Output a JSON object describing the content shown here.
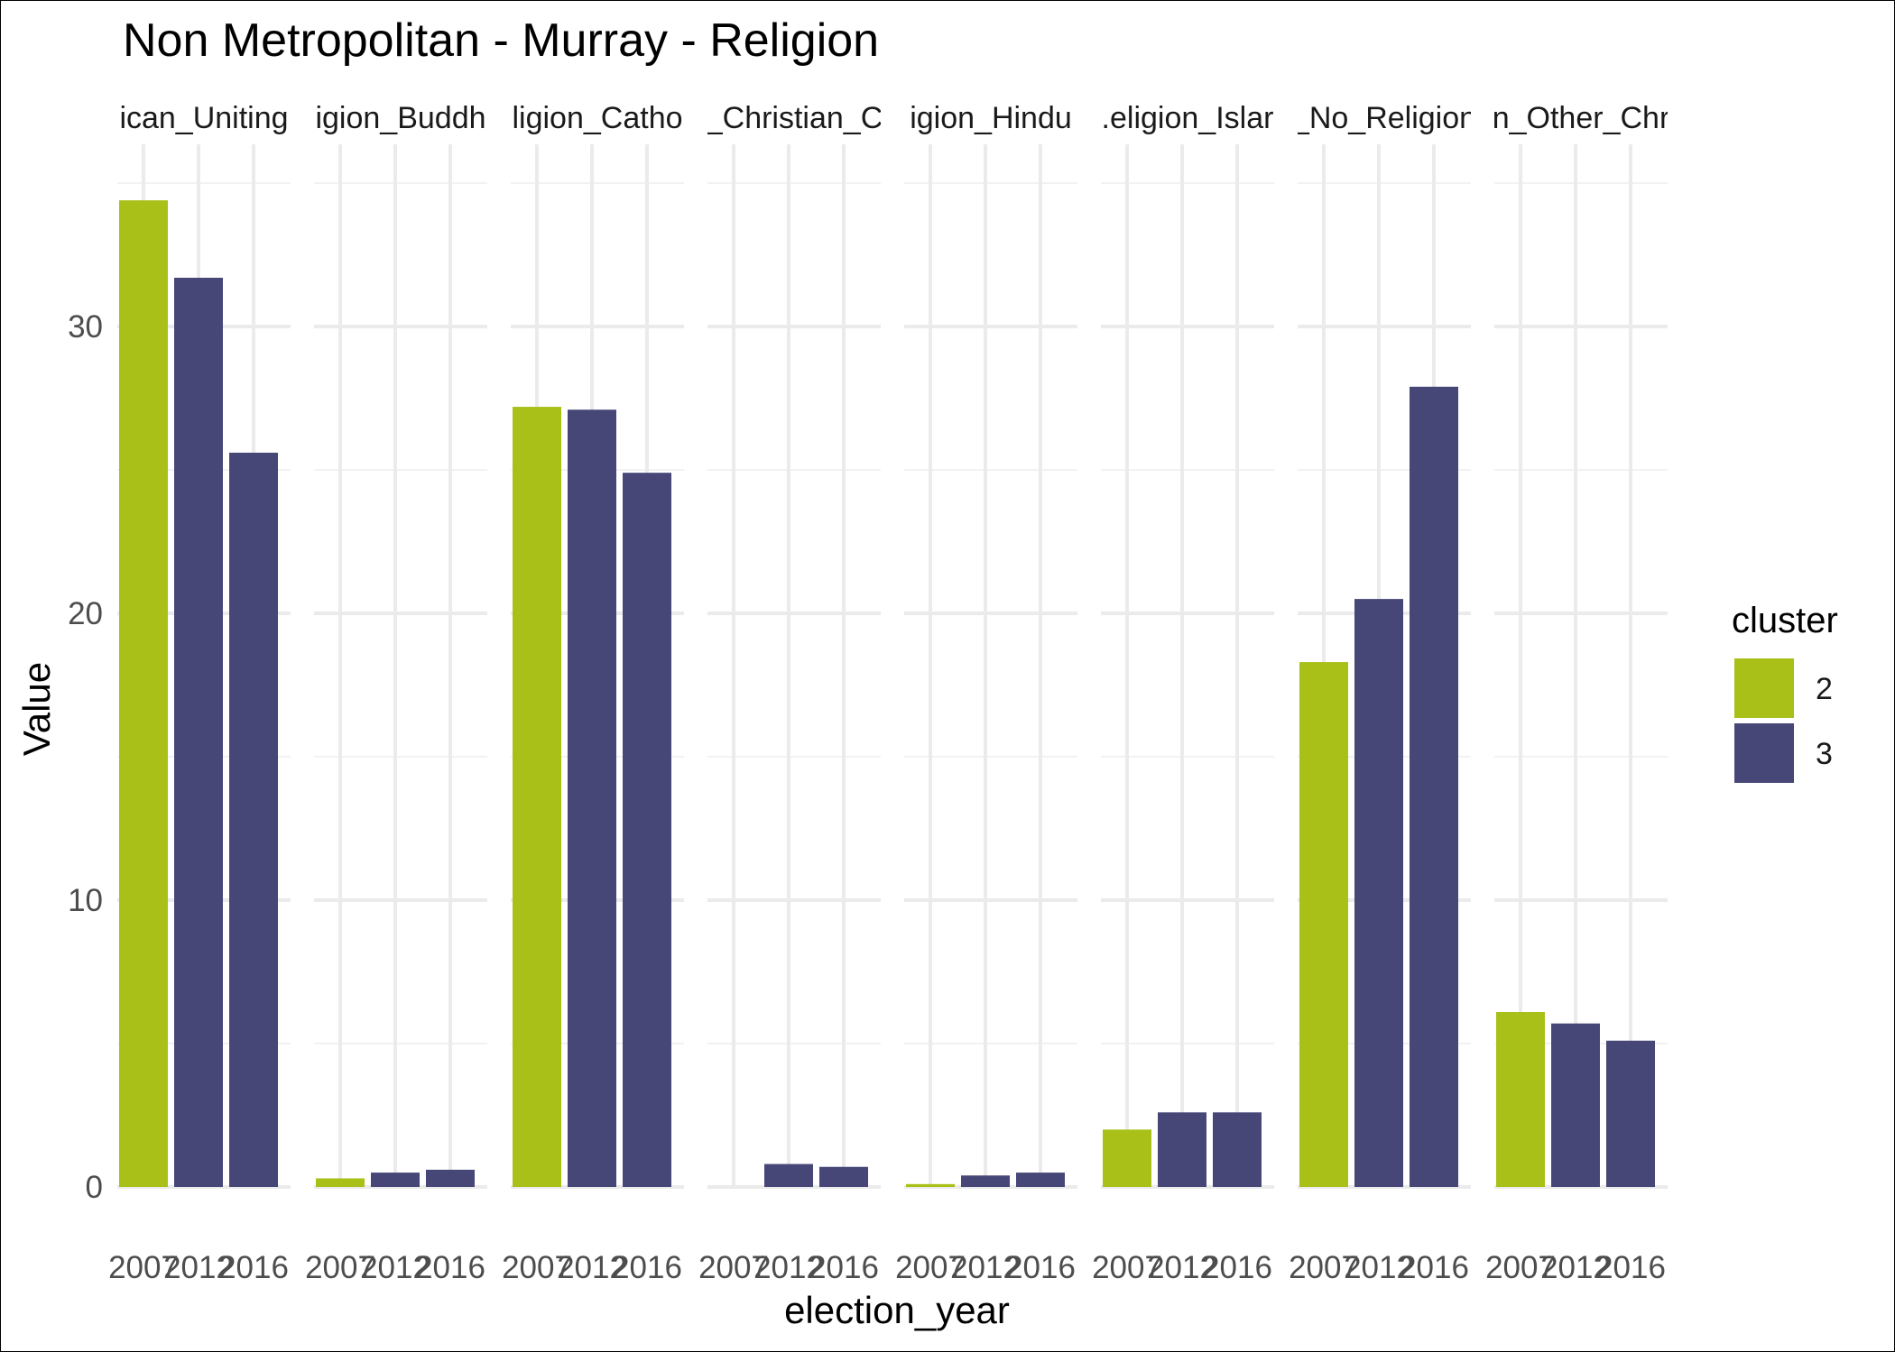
{
  "chart_data": {
    "type": "bar",
    "title": "Non Metropolitan - Murray - Religion",
    "xlabel": "election_year",
    "ylabel": "Value",
    "ylim": [
      0,
      35
    ],
    "y_ticks": [
      0,
      10,
      20,
      30
    ],
    "grid": true,
    "legend": {
      "title": "cluster",
      "placement": "right",
      "entries": [
        {
          "label": "2",
          "color": "#a9c019"
        },
        {
          "label": "3",
          "color": "#464776"
        }
      ]
    },
    "x_tick_labels": [
      "2007",
      "2012",
      "2016"
    ],
    "facets": [
      {
        "label": "ican_Uniting",
        "bars": [
          {
            "year": "2007",
            "cluster": "2",
            "value": 34.4
          },
          {
            "year": "2012",
            "cluster": "3",
            "value": 31.7
          },
          {
            "year": "2016",
            "cluster": "3",
            "value": 25.6
          }
        ]
      },
      {
        "label": "igion_Buddh",
        "bars": [
          {
            "year": "2007",
            "cluster": "2",
            "value": 0.3
          },
          {
            "year": "2012",
            "cluster": "3",
            "value": 0.5
          },
          {
            "year": "2016",
            "cluster": "3",
            "value": 0.6
          }
        ]
      },
      {
        "label": "ligion_Catho",
        "bars": [
          {
            "year": "2007",
            "cluster": "2",
            "value": 27.2
          },
          {
            "year": "2012",
            "cluster": "3",
            "value": 27.1
          },
          {
            "year": "2016",
            "cluster": "3",
            "value": 24.9
          }
        ]
      },
      {
        "label": "_Christian_C",
        "bars": [
          {
            "year": "2007",
            "cluster": "2",
            "value": 0.0
          },
          {
            "year": "2012",
            "cluster": "3",
            "value": 0.8
          },
          {
            "year": "2016",
            "cluster": "3",
            "value": 0.7
          }
        ]
      },
      {
        "label": "igion_Hindu",
        "bars": [
          {
            "year": "2007",
            "cluster": "2",
            "value": 0.1
          },
          {
            "year": "2012",
            "cluster": "3",
            "value": 0.4
          },
          {
            "year": "2016",
            "cluster": "3",
            "value": 0.5
          }
        ]
      },
      {
        "label": ".eligion_Islar",
        "bars": [
          {
            "year": "2007",
            "cluster": "2",
            "value": 2.0
          },
          {
            "year": "2012",
            "cluster": "3",
            "value": 2.6
          },
          {
            "year": "2016",
            "cluster": "3",
            "value": 2.6
          }
        ]
      },
      {
        "label": "_No_Religion",
        "bars": [
          {
            "year": "2007",
            "cluster": "2",
            "value": 18.3
          },
          {
            "year": "2012",
            "cluster": "3",
            "value": 20.5
          },
          {
            "year": "2016",
            "cluster": "3",
            "value": 27.9
          }
        ]
      },
      {
        "label": "n_Other_Chr",
        "bars": [
          {
            "year": "2007",
            "cluster": "2",
            "value": 6.1
          },
          {
            "year": "2012",
            "cluster": "3",
            "value": 5.7
          },
          {
            "year": "2016",
            "cluster": "3",
            "value": 5.1
          }
        ]
      }
    ]
  }
}
